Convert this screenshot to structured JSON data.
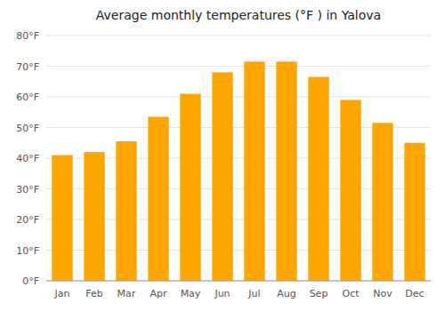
{
  "chart_data": {
    "type": "bar",
    "title": "Average monthly temperatures (°F ) in Yalova",
    "categories": [
      "Jan",
      "Feb",
      "Mar",
      "Apr",
      "May",
      "Jun",
      "Jul",
      "Aug",
      "Sep",
      "Oct",
      "Nov",
      "Dec"
    ],
    "values": [
      41,
      42,
      45.5,
      53.5,
      61,
      68,
      71.5,
      71.5,
      66.5,
      59,
      51.5,
      45
    ],
    "color": "#FFA500",
    "ylim": [
      0,
      80
    ],
    "yticks": [
      {
        "value": 0,
        "label": "0°F"
      },
      {
        "value": 10,
        "label": "10°F"
      },
      {
        "value": 20,
        "label": "20°F"
      },
      {
        "value": 30,
        "label": "30°F"
      },
      {
        "value": 40,
        "label": "40°F"
      },
      {
        "value": 50,
        "label": "50°F"
      },
      {
        "value": 60,
        "label": "60°F"
      },
      {
        "value": 70,
        "label": "70°F"
      },
      {
        "value": 80,
        "label": "80°F"
      }
    ],
    "grid": true
  }
}
